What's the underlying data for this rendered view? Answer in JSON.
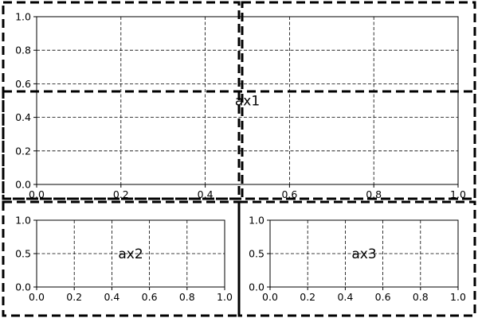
{
  "chart_data": [
    {
      "type": "line",
      "name": "ax1",
      "label": "ax1",
      "xlim": [
        0.0,
        1.0
      ],
      "ylim": [
        0.0,
        1.0
      ],
      "xticks": [
        0.0,
        0.2,
        0.4,
        0.6,
        0.8,
        1.0
      ],
      "yticks": [
        0.0,
        0.2,
        0.4,
        0.6,
        0.8,
        1.0
      ],
      "xtick_labels": [
        "0.0",
        "0.2",
        "0.4",
        "0.6",
        "0.8",
        "1.0"
      ],
      "ytick_labels": [
        "0.0",
        "0.2",
        "0.4",
        "0.6",
        "0.8",
        "1.0"
      ],
      "grid": true,
      "series": []
    },
    {
      "type": "line",
      "name": "ax2",
      "label": "ax2",
      "xlim": [
        0.0,
        1.0
      ],
      "ylim": [
        0.0,
        1.0
      ],
      "xticks": [
        0.0,
        0.2,
        0.4,
        0.6,
        0.8,
        1.0
      ],
      "yticks": [
        0.0,
        0.5,
        1.0
      ],
      "xtick_labels": [
        "0.0",
        "0.2",
        "0.4",
        "0.6",
        "0.8",
        "1.0"
      ],
      "ytick_labels": [
        "0.0",
        "0.5",
        "1.0"
      ],
      "grid": true,
      "series": []
    },
    {
      "type": "line",
      "name": "ax3",
      "label": "ax3",
      "xlim": [
        0.0,
        1.0
      ],
      "ylim": [
        0.0,
        1.0
      ],
      "xticks": [
        0.0,
        0.2,
        0.4,
        0.6,
        0.8,
        1.0
      ],
      "yticks": [
        0.0,
        0.5,
        1.0
      ],
      "xtick_labels": [
        "0.0",
        "0.2",
        "0.4",
        "0.6",
        "0.8",
        "1.0"
      ],
      "ytick_labels": [
        "0.0",
        "0.5",
        "1.0"
      ],
      "grid": true,
      "series": []
    }
  ]
}
